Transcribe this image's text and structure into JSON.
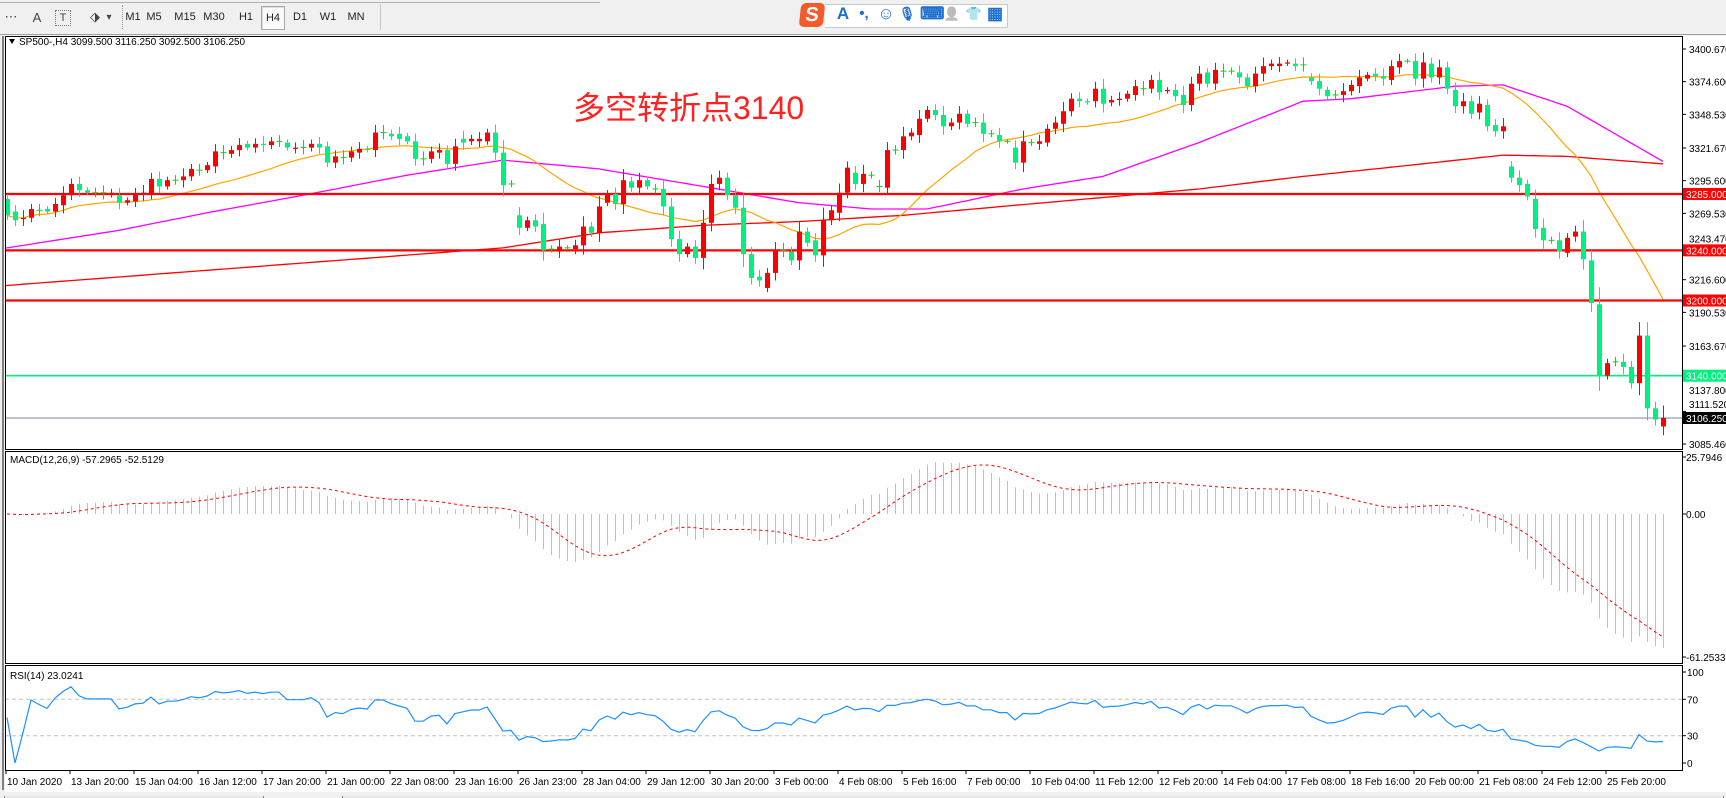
{
  "toolbar": {
    "tools": [
      {
        "icon": "grid-f-icon",
        "glyph": "⋯"
      },
      {
        "icon": "text-a-icon",
        "glyph": "A"
      },
      {
        "icon": "text-label-icon",
        "glyph": "T"
      },
      {
        "icon": "arrows-icon",
        "glyph": "⬗"
      }
    ],
    "dropdown_glyph": "▾",
    "periods": [
      "M1",
      "M5",
      "M15",
      "M30",
      "H1",
      "H4",
      "D1",
      "W1",
      "MN"
    ],
    "active_period": "H4"
  },
  "ime_bar": {
    "logo": "S",
    "icons": [
      {
        "name": "ime-english-icon",
        "glyph": "A"
      },
      {
        "name": "ime-punctuation-icon",
        "glyph": "•,"
      },
      {
        "name": "ime-emoji-icon",
        "glyph": "☺"
      },
      {
        "name": "ime-voice-icon",
        "glyph": "🎙"
      },
      {
        "name": "ime-keyboard-icon",
        "glyph": "⌨"
      },
      {
        "name": "ime-user-icon",
        "glyph": "👤"
      },
      {
        "name": "ime-skin-icon",
        "glyph": "👕"
      },
      {
        "name": "ime-toolbox-icon",
        "glyph": "▦"
      }
    ]
  },
  "chart_data": {
    "type": "candlestick",
    "header": "SP500-,H4  3099.500 3116.250 3092.500 3106.250",
    "annotation": "多空转折点3140",
    "colors": {
      "bull": "#ff0000",
      "bear": "#00f07f",
      "doji": "#00e000",
      "ma_fast": "#ffa500",
      "ma_mid": "#ff00ff",
      "ma_slow": "#ff0000",
      "macd_hist": "#c0c0c0",
      "macd_signal": "#ff0000",
      "rsi": "#1e90ff"
    },
    "candles_oc": [
      [
        3281,
        3268
      ],
      [
        3271,
        3264
      ],
      [
        3265,
        3266
      ],
      [
        3266,
        3273
      ],
      [
        3272,
        3272
      ],
      [
        3273,
        3271
      ],
      [
        3271,
        3277
      ],
      [
        3276,
        3284
      ],
      [
        3284,
        3293
      ],
      [
        3293,
        3288
      ],
      [
        3288,
        3286
      ],
      [
        3286,
        3286
      ],
      [
        3286,
        3286
      ],
      [
        3285,
        3286
      ],
      [
        3284,
        3278
      ],
      [
        3278,
        3280
      ],
      [
        3279,
        3285
      ],
      [
        3285,
        3286
      ],
      [
        3285,
        3297
      ],
      [
        3297,
        3291
      ],
      [
        3291,
        3296
      ],
      [
        3296,
        3296
      ],
      [
        3296,
        3299
      ],
      [
        3299,
        3305
      ],
      [
        3304,
        3304
      ],
      [
        3304,
        3308
      ],
      [
        3307,
        3319
      ],
      [
        3318,
        3318
      ],
      [
        3317,
        3320
      ],
      [
        3320,
        3324
      ],
      [
        3325,
        3322
      ],
      [
        3322,
        3325
      ],
      [
        3325,
        3324
      ],
      [
        3324,
        3327
      ],
      [
        3327,
        3327
      ],
      [
        3326,
        3322
      ],
      [
        3321,
        3322
      ],
      [
        3322,
        3322
      ],
      [
        3322,
        3325
      ],
      [
        3325,
        3322
      ],
      [
        3323,
        3310
      ],
      [
        3310,
        3315
      ],
      [
        3314,
        3314
      ],
      [
        3314,
        3319
      ],
      [
        3318,
        3321
      ],
      [
        3321,
        3320
      ],
      [
        3320,
        3334
      ],
      [
        3334,
        3334
      ],
      [
        3333,
        3331
      ],
      [
        3333,
        3329
      ],
      [
        3331,
        3327
      ],
      [
        3327,
        3313
      ],
      [
        3313,
        3313
      ],
      [
        3313,
        3319
      ],
      [
        3318,
        3320
      ],
      [
        3320,
        3309
      ],
      [
        3309,
        3323
      ],
      [
        3329,
        3326
      ],
      [
        3327,
        3329
      ],
      [
        3327,
        3329
      ],
      [
        3327,
        3334
      ],
      [
        3334,
        3318
      ],
      [
        3318,
        3292
      ],
      [
        3293,
        3293
      ],
      [
        3268,
        3258
      ],
      [
        3258,
        3264
      ],
      [
        3264,
        3259
      ],
      [
        3261,
        3240
      ],
      [
        3241,
        3241
      ],
      [
        3239,
        3243
      ],
      [
        3242,
        3242
      ],
      [
        3241,
        3244
      ],
      [
        3244,
        3259
      ],
      [
        3259,
        3254
      ],
      [
        3254,
        3275
      ],
      [
        3278,
        3285
      ],
      [
        3285,
        3277
      ],
      [
        3277,
        3296
      ],
      [
        3295,
        3290
      ],
      [
        3290,
        3296
      ],
      [
        3296,
        3291
      ],
      [
        3289,
        3289
      ],
      [
        3289,
        3275
      ],
      [
        3275,
        3249
      ],
      [
        3249,
        3237
      ],
      [
        3237,
        3243
      ],
      [
        3243,
        3234
      ],
      [
        3234,
        3262
      ],
      [
        3262,
        3293
      ],
      [
        3293,
        3298
      ],
      [
        3298,
        3284
      ],
      [
        3284,
        3274
      ],
      [
        3274,
        3237
      ],
      [
        3237,
        3218
      ],
      [
        3219,
        3216
      ],
      [
        3210,
        3222
      ],
      [
        3222,
        3240
      ],
      [
        3240,
        3240
      ],
      [
        3239,
        3232
      ],
      [
        3232,
        3255
      ],
      [
        3255,
        3246
      ],
      [
        3248,
        3236
      ],
      [
        3236,
        3264
      ],
      [
        3264,
        3272
      ],
      [
        3270,
        3286
      ],
      [
        3286,
        3306
      ],
      [
        3302,
        3293
      ],
      [
        3293,
        3301
      ],
      [
        3300,
        3300
      ],
      [
        3291,
        3291
      ],
      [
        3290,
        3320
      ],
      [
        3320,
        3320
      ],
      [
        3320,
        3331
      ],
      [
        3331,
        3334
      ],
      [
        3332,
        3345
      ],
      [
        3345,
        3352
      ],
      [
        3352,
        3348
      ],
      [
        3348,
        3339
      ],
      [
        3339,
        3342
      ],
      [
        3342,
        3349
      ],
      [
        3349,
        3341
      ],
      [
        3342,
        3342
      ],
      [
        3342,
        3333
      ],
      [
        3333,
        3333
      ],
      [
        3332,
        3327
      ],
      [
        3327,
        3327
      ],
      [
        3322,
        3310
      ],
      [
        3310,
        3327
      ],
      [
        3326,
        3326
      ],
      [
        3325,
        3327
      ],
      [
        3326,
        3337
      ],
      [
        3337,
        3342
      ],
      [
        3341,
        3351
      ],
      [
        3351,
        3361
      ],
      [
        3361,
        3359
      ],
      [
        3359,
        3358
      ],
      [
        3359,
        3369
      ],
      [
        3369,
        3357
      ],
      [
        3358,
        3360
      ],
      [
        3360,
        3361
      ],
      [
        3361,
        3365
      ],
      [
        3364,
        3371
      ],
      [
        3369,
        3369
      ],
      [
        3369,
        3376
      ],
      [
        3376,
        3366
      ],
      [
        3367,
        3368
      ],
      [
        3368,
        3363
      ],
      [
        3364,
        3356
      ],
      [
        3356,
        3373
      ],
      [
        3373,
        3381
      ],
      [
        3382,
        3373
      ],
      [
        3373,
        3384
      ],
      [
        3383,
        3383
      ],
      [
        3383,
        3383
      ],
      [
        3382,
        3378
      ],
      [
        3378,
        3371
      ],
      [
        3371,
        3381
      ],
      [
        3381,
        3387
      ],
      [
        3387,
        3389
      ],
      [
        3387,
        3389
      ],
      [
        3389,
        3390
      ],
      [
        3389,
        3387
      ],
      [
        3388,
        3388
      ],
      [
        3378,
        3375
      ],
      [
        3375,
        3369
      ],
      [
        3368,
        3363
      ],
      [
        3364,
        3364
      ],
      [
        3364,
        3367
      ],
      [
        3367,
        3372
      ],
      [
        3371,
        3378
      ],
      [
        3377,
        3380
      ],
      [
        3381,
        3379
      ],
      [
        3379,
        3377
      ],
      [
        3376,
        3387
      ],
      [
        3386,
        3391
      ],
      [
        3391,
        3391
      ],
      [
        3391,
        3377
      ],
      [
        3377,
        3390
      ],
      [
        3389,
        3378
      ],
      [
        3378,
        3386
      ],
      [
        3386,
        3369
      ],
      [
        3368,
        3355
      ],
      [
        3355,
        3359
      ],
      [
        3359,
        3349
      ],
      [
        3350,
        3357
      ],
      [
        3356,
        3339
      ],
      [
        3340,
        3335
      ],
      [
        3335,
        3339
      ],
      [
        3307,
        3298
      ],
      [
        3298,
        3292
      ],
      [
        3293,
        3283
      ],
      [
        3281,
        3257
      ],
      [
        3258,
        3248
      ],
      [
        3248,
        3248
      ],
      [
        3248,
        3239
      ],
      [
        3238,
        3250
      ],
      [
        3251,
        3255
      ],
      [
        3255,
        3233
      ],
      [
        3232,
        3198
      ],
      [
        3197,
        3140
      ],
      [
        3140,
        3150
      ],
      [
        3151,
        3151
      ],
      [
        3151,
        3147
      ],
      [
        3147,
        3134
      ],
      [
        3134,
        3172
      ],
      [
        3172,
        3114
      ],
      [
        3114,
        3105
      ],
      [
        3099.5,
        3116.25,
        3092.5,
        3106.25
      ]
    ],
    "ma_mid_points": [
      [
        0,
        3242
      ],
      [
        14,
        3256
      ],
      [
        25,
        3270
      ],
      [
        37,
        3284
      ],
      [
        50,
        3300
      ],
      [
        62,
        3312
      ],
      [
        74,
        3305
      ],
      [
        87,
        3291
      ],
      [
        99,
        3278
      ],
      [
        108,
        3273
      ],
      [
        115,
        3273
      ],
      [
        127,
        3289
      ],
      [
        137,
        3299
      ],
      [
        149,
        3326
      ],
      [
        162,
        3359
      ],
      [
        168,
        3361
      ],
      [
        181,
        3371
      ],
      [
        187,
        3372
      ],
      [
        195,
        3355
      ],
      [
        207,
        3311
      ]
    ],
    "ma_slow_points": [
      [
        0,
        3212
      ],
      [
        62,
        3242
      ],
      [
        74,
        3254
      ],
      [
        87,
        3260
      ],
      [
        99,
        3263
      ],
      [
        112,
        3268
      ],
      [
        149,
        3289
      ],
      [
        162,
        3299
      ],
      [
        174,
        3307
      ],
      [
        187,
        3316
      ],
      [
        195,
        3315
      ],
      [
        207,
        3309
      ]
    ],
    "hlines": [
      {
        "price": 3285,
        "label": "3285.000",
        "color": "#ff0000"
      },
      {
        "price": 3240,
        "label": "3240.000",
        "color": "#ff0000"
      },
      {
        "price": 3200,
        "label": "3200.000",
        "color": "#ff0000"
      },
      {
        "price": 3140,
        "label": "3140.000",
        "color": "#00f07f"
      },
      {
        "price": 3106.25,
        "label": "3106.250",
        "color": "#778899",
        "bid": true
      }
    ],
    "price_ticks": [
      "3400.670",
      "3374.600",
      "3348.530",
      "3321.670",
      "3295.600",
      "3269.530",
      "3243.470",
      "3216.600",
      "3190.530",
      "3163.670",
      "3137.800",
      "3111.520",
      "3085.460"
    ],
    "macd": {
      "title": "MACD(12,26,9) -57.2965 -52.5129",
      "ticks": [
        "25.7946",
        "0.00",
        "-61.2533"
      ]
    },
    "rsi": {
      "title": "RSI(14) 23.0241",
      "ticks": [
        "100",
        "70",
        "30",
        "0"
      ],
      "levels": [
        70,
        30
      ]
    },
    "date_ticks": [
      "10 Jan 2020",
      "13 Jan 20:00",
      "15 Jan 04:00",
      "16 Jan 12:00",
      "17 Jan 20:00",
      "21 Jan 00:00",
      "22 Jan 08:00",
      "23 Jan 16:00",
      "26 Jan 23:00",
      "28 Jan 04:00",
      "29 Jan 12:00",
      "30 Jan 20:00",
      "3 Feb 00:00",
      "4 Feb 08:00",
      "5 Feb 16:00",
      "7 Feb 00:00",
      "10 Feb 04:00",
      "11 Feb 12:00",
      "12 Feb 20:00",
      "14 Feb 04:00",
      "17 Feb 08:00",
      "18 Feb 16:00",
      "20 Feb 00:00",
      "21 Feb 08:00",
      "24 Feb 12:00",
      "25 Feb 20:00"
    ]
  }
}
